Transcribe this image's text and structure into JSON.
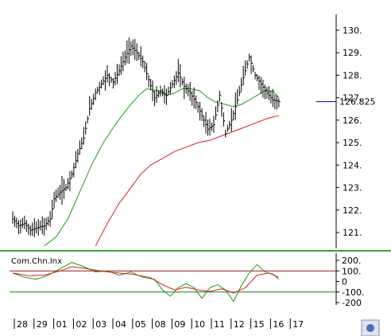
{
  "chart_data": [
    {
      "type": "candlestick-line",
      "x_ticks": [
        "28",
        "29",
        "01",
        "02",
        "03",
        "04",
        "05",
        "08",
        "09",
        "10",
        "11",
        "12",
        "15",
        "16",
        "17"
      ],
      "y_ticks": [
        "130.",
        "129.",
        "128.",
        "127.",
        "126.",
        "125.",
        "124.",
        "123.",
        "122.",
        "121."
      ],
      "ylim": [
        120.4,
        130.6
      ],
      "last_price_label": "126.825",
      "last_price": 126.825,
      "close_series": [
        [
          0,
          121.6
        ],
        [
          0.3,
          121.3
        ],
        [
          0.6,
          121.4
        ],
        [
          0.9,
          121.1
        ],
        [
          1.2,
          121.2
        ],
        [
          1.6,
          121.3
        ],
        [
          1.9,
          121.6
        ],
        [
          2.1,
          122.5
        ],
        [
          2.4,
          122.8
        ],
        [
          2.7,
          123.0
        ],
        [
          3.0,
          123.6
        ],
        [
          3.3,
          124.5
        ],
        [
          3.6,
          125.2
        ],
        [
          3.9,
          126.5
        ],
        [
          4.2,
          127.2
        ],
        [
          4.5,
          127.6
        ],
        [
          4.8,
          128.0
        ],
        [
          5.1,
          127.7
        ],
        [
          5.4,
          128.2
        ],
        [
          5.7,
          128.8
        ],
        [
          6.0,
          129.3
        ],
        [
          6.3,
          129.0
        ],
        [
          6.6,
          128.6
        ],
        [
          6.9,
          127.8
        ],
        [
          7.2,
          127.0
        ],
        [
          7.5,
          127.3
        ],
        [
          7.8,
          127.1
        ],
        [
          8.1,
          127.6
        ],
        [
          8.4,
          128.1
        ],
        [
          8.7,
          127.5
        ],
        [
          9.0,
          127.2
        ],
        [
          9.3,
          126.8
        ],
        [
          9.6,
          126.2
        ],
        [
          9.9,
          125.6
        ],
        [
          10.2,
          125.8
        ],
        [
          10.5,
          127.1
        ],
        [
          10.8,
          125.4
        ],
        [
          11.1,
          126.0
        ],
        [
          11.4,
          126.9
        ],
        [
          11.7,
          127.9
        ],
        [
          12.0,
          128.8
        ],
        [
          12.3,
          128.0
        ],
        [
          12.6,
          127.6
        ],
        [
          12.9,
          127.2
        ],
        [
          13.2,
          126.9
        ],
        [
          13.5,
          126.825
        ]
      ],
      "ma_green": [
        [
          1.6,
          120.4
        ],
        [
          2.2,
          120.8
        ],
        [
          2.8,
          121.6
        ],
        [
          3.4,
          122.8
        ],
        [
          4.0,
          124.0
        ],
        [
          4.6,
          125.0
        ],
        [
          5.2,
          125.8
        ],
        [
          5.8,
          126.5
        ],
        [
          6.4,
          127.1
        ],
        [
          6.8,
          127.4
        ],
        [
          7.4,
          127.3
        ],
        [
          7.8,
          127.1
        ],
        [
          8.2,
          127.2
        ],
        [
          8.6,
          127.4
        ],
        [
          9.0,
          127.4
        ],
        [
          9.5,
          127.3
        ],
        [
          9.9,
          127.0
        ],
        [
          10.3,
          126.8
        ],
        [
          10.8,
          126.7
        ],
        [
          11.2,
          126.6
        ],
        [
          11.6,
          126.7
        ],
        [
          12.0,
          126.9
        ],
        [
          12.4,
          127.1
        ],
        [
          12.8,
          127.3
        ],
        [
          13.2,
          127.3
        ],
        [
          13.5,
          127.0
        ]
      ],
      "ma_red": [
        [
          4.2,
          120.4
        ],
        [
          4.8,
          121.4
        ],
        [
          5.4,
          122.3
        ],
        [
          6.0,
          123.0
        ],
        [
          6.5,
          123.6
        ],
        [
          7.0,
          124.0
        ],
        [
          7.6,
          124.3
        ],
        [
          8.2,
          124.6
        ],
        [
          8.8,
          124.8
        ],
        [
          9.4,
          125.0
        ],
        [
          10.0,
          125.1
        ],
        [
          10.6,
          125.3
        ],
        [
          11.2,
          125.5
        ],
        [
          11.8,
          125.7
        ],
        [
          12.4,
          125.9
        ],
        [
          13.0,
          126.1
        ],
        [
          13.5,
          126.2
        ]
      ]
    },
    {
      "type": "line",
      "title": "Com.Chn.Inx",
      "y_ticks": [
        "200.",
        "100.",
        "0",
        "-100.",
        "-200"
      ],
      "ylim": [
        -220,
        240
      ],
      "reference_lines": [
        100,
        -100
      ],
      "cci": [
        [
          0,
          80
        ],
        [
          0.6,
          40
        ],
        [
          1.2,
          20
        ],
        [
          1.8,
          60
        ],
        [
          2.4,
          120
        ],
        [
          3.0,
          180
        ],
        [
          3.6,
          140
        ],
        [
          4.2,
          90
        ],
        [
          4.8,
          100
        ],
        [
          5.4,
          60
        ],
        [
          6.0,
          90
        ],
        [
          6.6,
          40
        ],
        [
          7.2,
          20
        ],
        [
          7.6,
          -80
        ],
        [
          8.0,
          -140
        ],
        [
          8.4,
          -60
        ],
        [
          8.8,
          -20
        ],
        [
          9.2,
          -60
        ],
        [
          9.6,
          -160
        ],
        [
          10.0,
          -60
        ],
        [
          10.4,
          -30
        ],
        [
          10.8,
          -80
        ],
        [
          11.2,
          -190
        ],
        [
          11.6,
          -40
        ],
        [
          12.0,
          80
        ],
        [
          12.4,
          160
        ],
        [
          12.8,
          90
        ],
        [
          13.2,
          70
        ],
        [
          13.5,
          20
        ]
      ],
      "cci_signal": [
        [
          0,
          80
        ],
        [
          0.8,
          55
        ],
        [
          1.6,
          60
        ],
        [
          2.4,
          100
        ],
        [
          3.0,
          140
        ],
        [
          3.8,
          120
        ],
        [
          4.6,
          95
        ],
        [
          5.4,
          80
        ],
        [
          6.2,
          65
        ],
        [
          7.0,
          35
        ],
        [
          7.6,
          -30
        ],
        [
          8.2,
          -80
        ],
        [
          8.8,
          -55
        ],
        [
          9.4,
          -80
        ],
        [
          10.0,
          -95
        ],
        [
          10.6,
          -70
        ],
        [
          11.2,
          -110
        ],
        [
          11.8,
          -60
        ],
        [
          12.4,
          60
        ],
        [
          13.0,
          80
        ],
        [
          13.5,
          40
        ]
      ]
    }
  ],
  "colors": {
    "price": "#000000",
    "ma_green": "#1a9a1a",
    "ma_red": "#e02020",
    "cci": "#1a9a1a",
    "cci_signal": "#e02020",
    "ref_upper": "#8b1a1a",
    "ref_lower": "#1a7a1a",
    "separator": "#3aa03a",
    "last_price_marker": "#00008b"
  }
}
